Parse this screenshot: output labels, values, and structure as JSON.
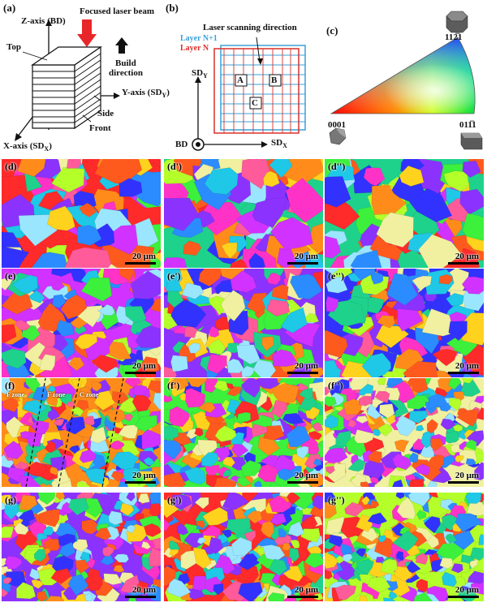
{
  "panel_a": {
    "label": "(a)",
    "beam": "Focused laser beam",
    "z_axis": "Z-axis (BD)",
    "top": "Top",
    "build_line1": "Build",
    "build_line2": "direction",
    "y_axis": "Y-axis (SD",
    "y_sub": "Y",
    "side": "Side",
    "front": "Front",
    "x_axis": "X-axis (SD",
    "x_sub": "X",
    "close_paren": ")"
  },
  "panel_b": {
    "label": "(b)",
    "scan_dir": "Laser scanning direction",
    "layer_n1": "Layer N+1",
    "layer_n": "Layer N",
    "point_a": "A",
    "point_b": "B",
    "point_c": "C",
    "sd_y": "SD",
    "sd_y_sub": "Y",
    "sd_x": "SD",
    "sd_x_sub": "X",
    "bd": "BD",
    "colors": {
      "layer_n1": "#3aa0d8",
      "layer_n": "#d9302c"
    }
  },
  "panel_c": {
    "label": "(c)",
    "corner_top": "11ŵ2ɠ1",
    "corner_top_display": "112̅1",
    "corner_left": "0001",
    "corner_right": "011̅1"
  },
  "maps": [
    {
      "label": "(d)",
      "scale": "20 μm"
    },
    {
      "label": "(d')",
      "scale": "20 μm"
    },
    {
      "label": "(d'')",
      "scale": "20 μm"
    },
    {
      "label": "(e)",
      "scale": "20 μm"
    },
    {
      "label": "(e')",
      "scale": "20 μm"
    },
    {
      "label": "(e'')",
      "scale": "20 μm"
    },
    {
      "label": "(f)",
      "scale": "20 μm"
    },
    {
      "label": "(f')",
      "scale": "20 μm"
    },
    {
      "label": "(f'')",
      "scale": "20 μm"
    },
    {
      "label": "(g)",
      "scale": "20 μm"
    },
    {
      "label": "(g')",
      "scale": "20 μm"
    },
    {
      "label": "(g'')",
      "scale": "20 μm"
    }
  ],
  "zones": [
    "F zone",
    "F zone",
    "C zone"
  ],
  "ipf_palette": [
    "#ff2a2a",
    "#ff5a1e",
    "#ff8c1a",
    "#ffd21e",
    "#b4ff2a",
    "#3cf03c",
    "#1ed28c",
    "#1ec8e6",
    "#2a8cff",
    "#3232ff",
    "#8c32ff",
    "#d232ff",
    "#ff32c8",
    "#ff5a9a",
    "#9ae6ff",
    "#f0f0a0"
  ]
}
